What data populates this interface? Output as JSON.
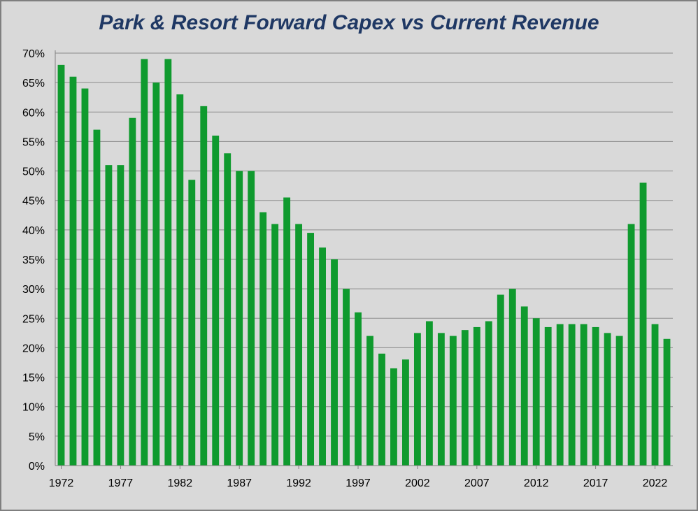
{
  "chart_data": {
    "type": "bar",
    "title": "Park & Resort Forward Capex vs Current Revenue",
    "xlabel": "",
    "ylabel": "",
    "ylim": [
      0,
      70
    ],
    "ytick_labels": [
      "0%",
      "5%",
      "10%",
      "15%",
      "20%",
      "25%",
      "30%",
      "35%",
      "40%",
      "45%",
      "50%",
      "55%",
      "60%",
      "65%",
      "70%"
    ],
    "xtick_labels": [
      "1972",
      "1977",
      "1982",
      "1987",
      "1992",
      "1997",
      "2002",
      "2007",
      "2012",
      "2017",
      "2022"
    ],
    "grid": true,
    "legend": "none",
    "bar_color": "#0f9a2e",
    "categories": [
      1972,
      1973,
      1974,
      1975,
      1976,
      1977,
      1978,
      1979,
      1980,
      1981,
      1982,
      1983,
      1984,
      1985,
      1986,
      1987,
      1988,
      1989,
      1990,
      1991,
      1992,
      1993,
      1994,
      1995,
      1996,
      1997,
      1998,
      1999,
      2000,
      2001,
      2002,
      2003,
      2004,
      2005,
      2006,
      2007,
      2008,
      2009,
      2010,
      2011,
      2012,
      2013,
      2014,
      2015,
      2016,
      2017,
      2018,
      2019,
      2020,
      2021,
      2022,
      2023
    ],
    "values": [
      68,
      66,
      64,
      57,
      51,
      51,
      59,
      69,
      65,
      69,
      63,
      48.5,
      61,
      56,
      53,
      50,
      50,
      43,
      41,
      45.5,
      41,
      39.5,
      37,
      35,
      30,
      26,
      22,
      19,
      16.5,
      18,
      22.5,
      24.5,
      22.5,
      22,
      23,
      23.5,
      24.5,
      29,
      30,
      27,
      25,
      23.5,
      24,
      24,
      24,
      23.5,
      22.5,
      22,
      41,
      48,
      24,
      21.5
    ]
  }
}
